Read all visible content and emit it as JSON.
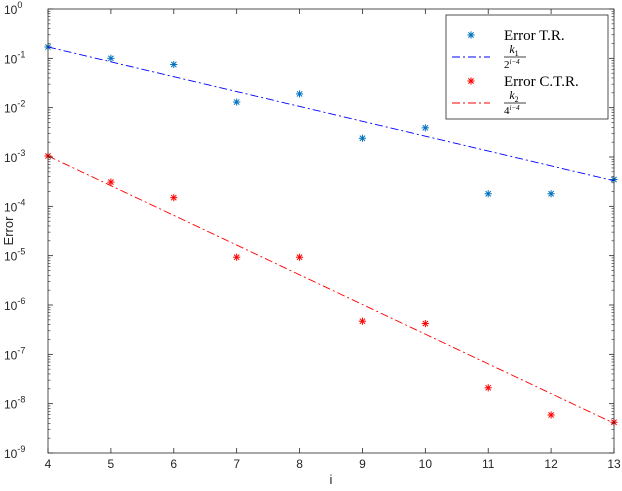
{
  "chart_data": {
    "type": "scatter",
    "xlabel": "i",
    "ylabel": "Error",
    "xlim": [
      4,
      13
    ],
    "ylim": [
      1e-09,
      1
    ],
    "yscale": "log",
    "grid": false,
    "legend_position": "top-right",
    "x_ticks": [
      4,
      5,
      6,
      7,
      8,
      9,
      10,
      11,
      12,
      13
    ],
    "y_tick_exponents": [
      0,
      -1,
      -2,
      -3,
      -4,
      -5,
      -6,
      -7,
      -8,
      -9
    ],
    "y_tick_base": "10",
    "series": [
      {
        "name": "Error T.R.",
        "kind": "marker",
        "marker": "*",
        "color": "#0072BD",
        "x": [
          4,
          5,
          6,
          7,
          8,
          9,
          10,
          11,
          12,
          13
        ],
        "y": [
          0.17,
          0.1,
          0.075,
          0.013,
          0.019,
          0.0024,
          0.0039,
          0.00018,
          0.00018,
          0.00035
        ]
      },
      {
        "name": "k1 / 2^(i-4)",
        "kind": "line",
        "dash": "dash-dot",
        "color": "#0000FF",
        "x": [
          4,
          13
        ],
        "y": [
          0.17,
          0.00033
        ]
      },
      {
        "name": "Error C.T.R.",
        "kind": "marker",
        "marker": "*",
        "color": "#FF0000",
        "x": [
          4,
          5,
          6,
          7,
          8,
          9,
          10,
          11,
          12,
          13
        ],
        "y": [
          0.00105,
          0.00031,
          0.00015,
          9.3e-06,
          9.3e-06,
          4.7e-07,
          4.2e-07,
          2.1e-08,
          5.9e-09,
          4.2e-09
        ]
      },
      {
        "name": "k2 / 4^(i-4)",
        "kind": "line",
        "dash": "dash-dot",
        "color": "#FF0000",
        "x": [
          4,
          13
        ],
        "y": [
          0.00105,
          4e-09
        ]
      }
    ],
    "legend": [
      {
        "label": "Error T.R.",
        "series": 0
      },
      {
        "label_k": "k",
        "label_sub": "1",
        "label_base": "2",
        "label_exp": "i−4",
        "series": 1
      },
      {
        "label": "Error C.T.R.",
        "series": 2
      },
      {
        "label_k": "k",
        "label_sub": "2",
        "label_base": "4",
        "label_exp": "i−4",
        "series": 3
      }
    ]
  }
}
